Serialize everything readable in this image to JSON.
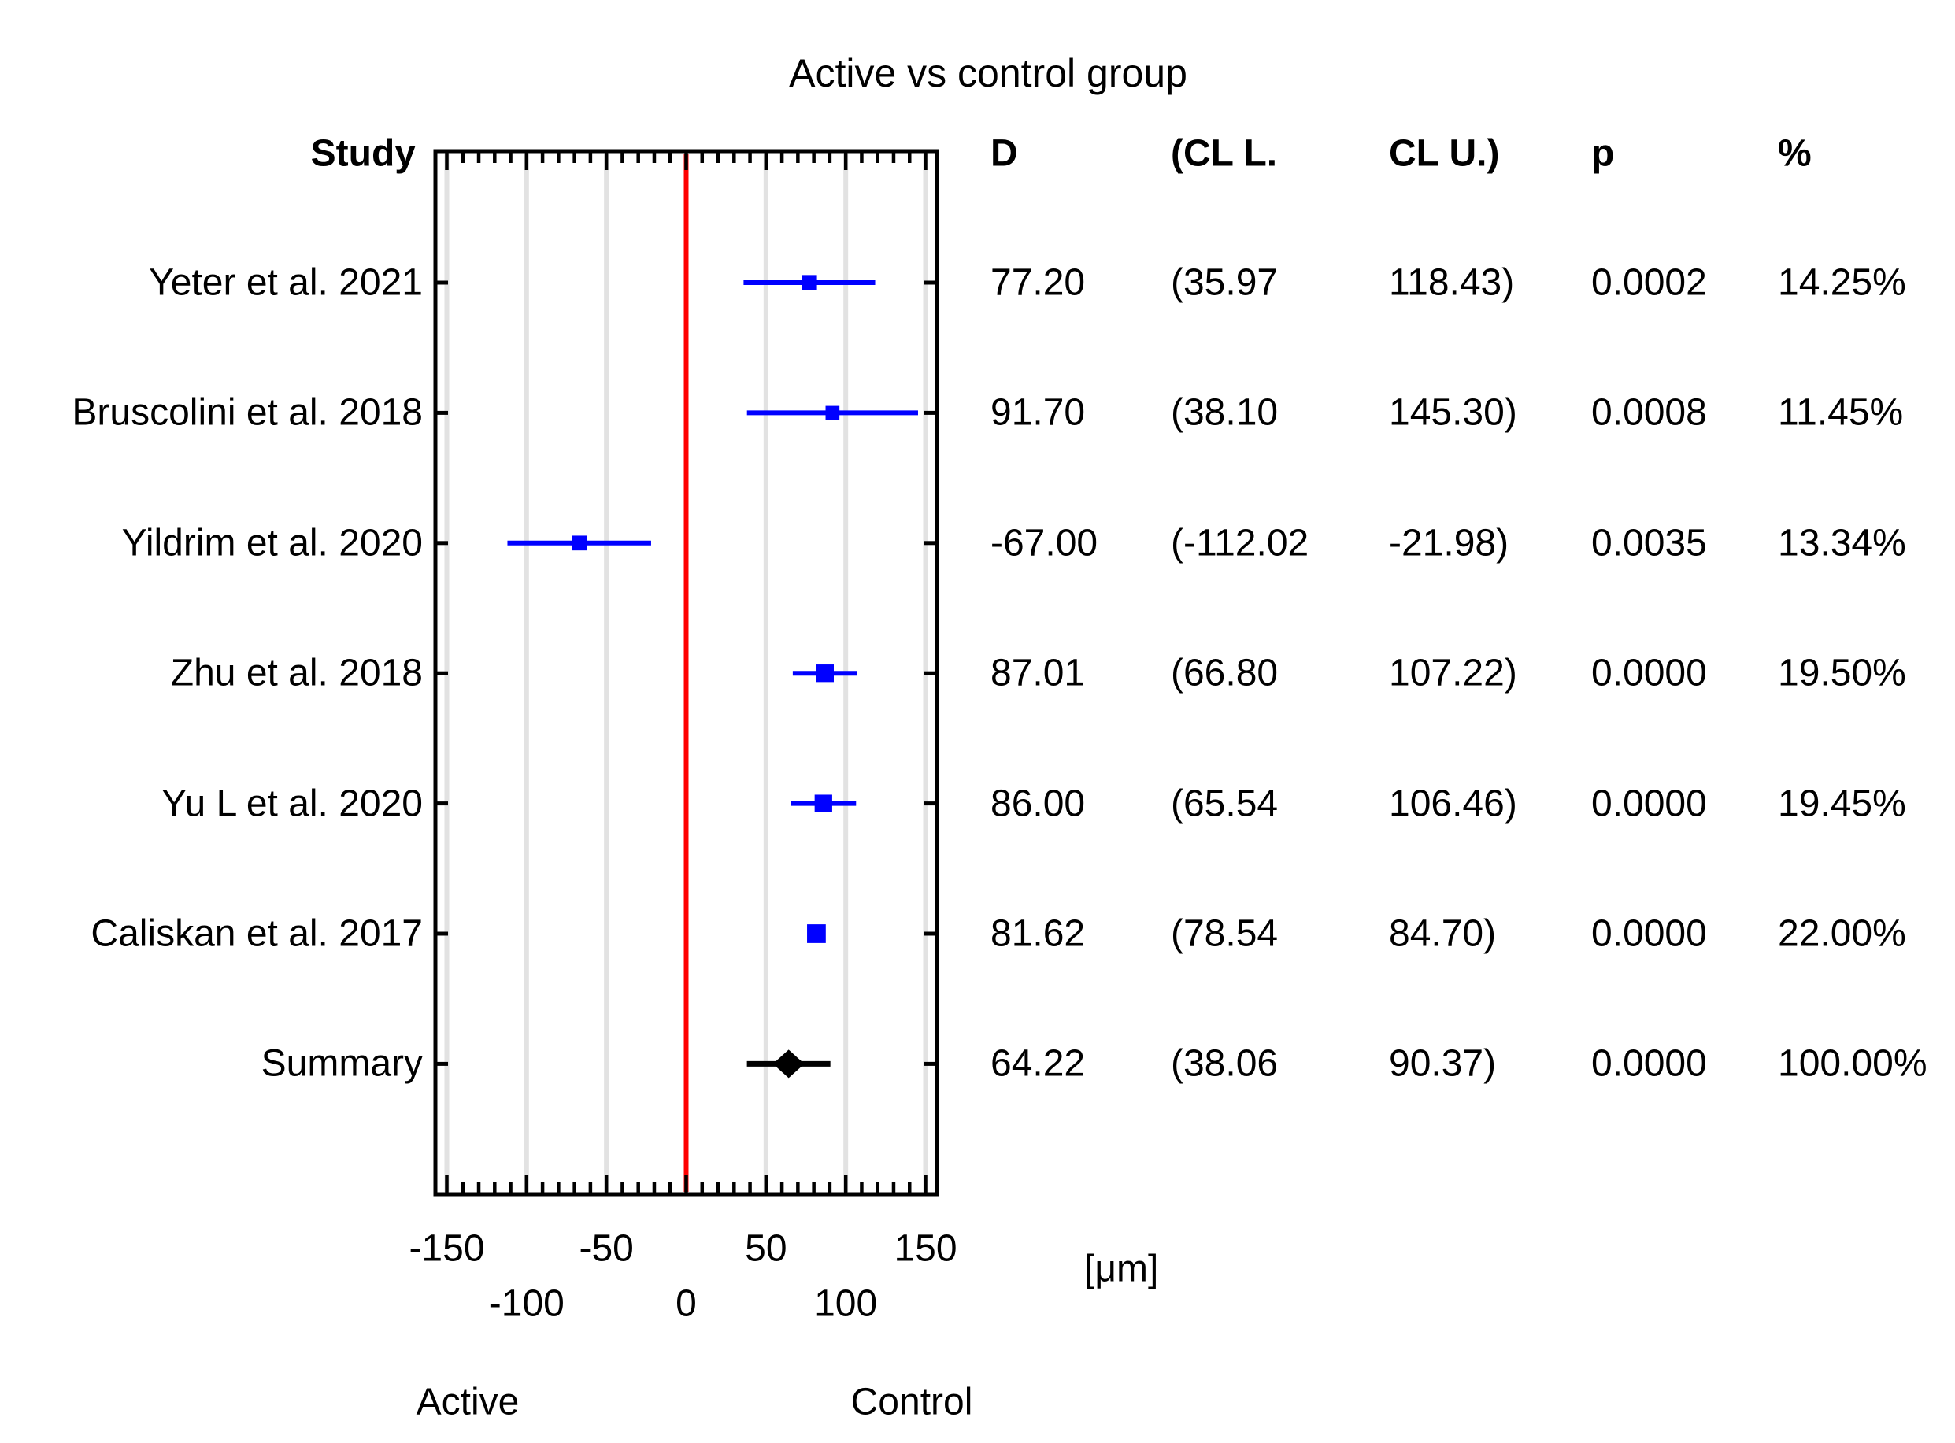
{
  "title": "Active vs control group",
  "colors": {
    "marker_blue": "#0000ff",
    "summary_black": "#000000",
    "zero_line_red": "#ff0000",
    "gridline_gray": "#e2e2e2",
    "frame_black": "#000000",
    "text_black": "#000000"
  },
  "table": {
    "study_header": "Study",
    "columns": [
      "D",
      "(CL L.",
      "CL U.)",
      "p",
      "%"
    ]
  },
  "axis": {
    "unit_label": "[μm]",
    "group_label_negative": "Active",
    "group_label_positive": "Control",
    "tick_labels": [
      {
        "value": -150,
        "text": "-150",
        "row": 1
      },
      {
        "value": -100,
        "text": "-100",
        "row": 2
      },
      {
        "value": -50,
        "text": "-50",
        "row": 1
      },
      {
        "value": 0,
        "text": "0",
        "row": 2
      },
      {
        "value": 50,
        "text": "50",
        "row": 1
      },
      {
        "value": 100,
        "text": "100",
        "row": 2
      },
      {
        "value": 150,
        "text": "150",
        "row": 1
      }
    ]
  },
  "chart_data": {
    "type": "forest",
    "title": "Active vs control group",
    "xlabel": "[μm]",
    "xlim": [
      -157,
      157
    ],
    "x_major_tick_step": 50,
    "x_minor_tick_step": 10,
    "zero_reference_line": 0,
    "grid": true,
    "legend_position": "none",
    "rows": [
      {
        "label": "Yeter et al. 2021",
        "d": 77.2,
        "cl_lower": 35.97,
        "cl_upper": 118.43,
        "p": 0.0002,
        "weight_pct": 14.25,
        "summary": false,
        "display": {
          "d": "77.20",
          "cl_lower": "(35.97",
          "cl_upper": "118.43)",
          "p": "0.0002",
          "weight": "14.25%"
        }
      },
      {
        "label": "Bruscolini et al. 2018",
        "d": 91.7,
        "cl_lower": 38.1,
        "cl_upper": 145.3,
        "p": 0.0008,
        "weight_pct": 11.45,
        "summary": false,
        "display": {
          "d": "91.70",
          "cl_lower": "(38.10",
          "cl_upper": "145.30)",
          "p": "0.0008",
          "weight": "11.45%"
        }
      },
      {
        "label": "Yildrim et al. 2020",
        "d": -67.0,
        "cl_lower": -112.02,
        "cl_upper": -21.98,
        "p": 0.0035,
        "weight_pct": 13.34,
        "summary": false,
        "display": {
          "d": "-67.00",
          "cl_lower": "(-112.02",
          "cl_upper": "-21.98)",
          "p": "0.0035",
          "weight": "13.34%"
        }
      },
      {
        "label": "Zhu et al. 2018",
        "d": 87.01,
        "cl_lower": 66.8,
        "cl_upper": 107.22,
        "p": 0.0,
        "weight_pct": 19.5,
        "summary": false,
        "display": {
          "d": "87.01",
          "cl_lower": "(66.80",
          "cl_upper": "107.22)",
          "p": "0.0000",
          "weight": "19.50%"
        }
      },
      {
        "label": "Yu L et al. 2020",
        "d": 86.0,
        "cl_lower": 65.54,
        "cl_upper": 106.46,
        "p": 0.0,
        "weight_pct": 19.45,
        "summary": false,
        "display": {
          "d": "86.00",
          "cl_lower": "(65.54",
          "cl_upper": "106.46)",
          "p": "0.0000",
          "weight": "19.45%"
        }
      },
      {
        "label": "Caliskan et al. 2017",
        "d": 81.62,
        "cl_lower": 78.54,
        "cl_upper": 84.7,
        "p": 0.0,
        "weight_pct": 22.0,
        "summary": false,
        "display": {
          "d": "81.62",
          "cl_lower": "(78.54",
          "cl_upper": "84.70)",
          "p": "0.0000",
          "weight": "22.00%"
        }
      },
      {
        "label": "Summary",
        "d": 64.22,
        "cl_lower": 38.06,
        "cl_upper": 90.37,
        "p": 0.0,
        "weight_pct": 100.0,
        "summary": true,
        "display": {
          "d": "64.22",
          "cl_lower": "(38.06",
          "cl_upper": "90.37)",
          "p": "0.0000",
          "weight": "100.00%"
        }
      }
    ]
  }
}
